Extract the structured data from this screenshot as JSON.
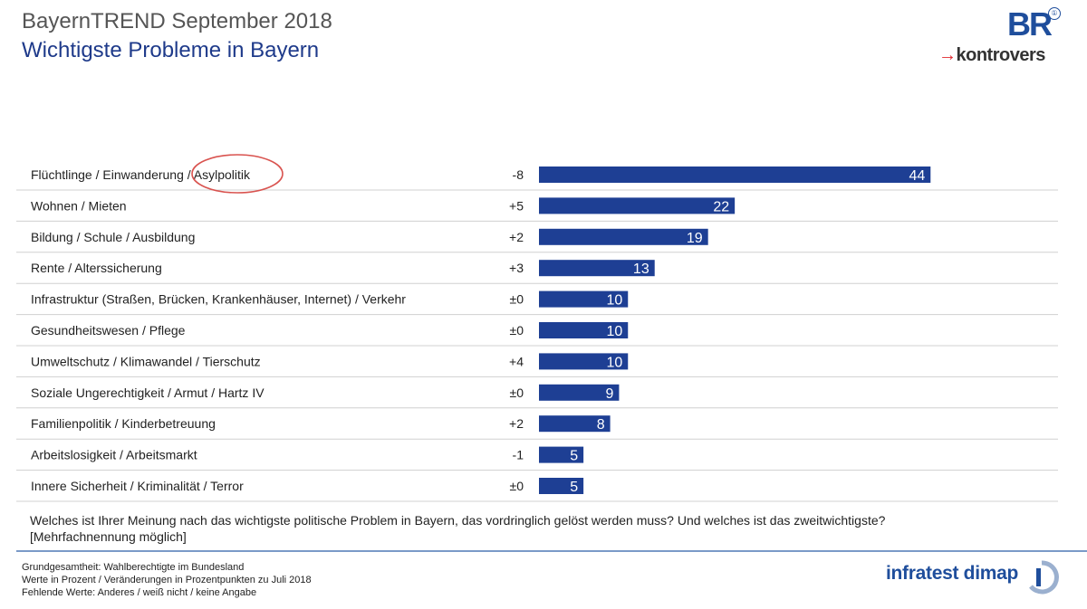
{
  "header": {
    "title": "BayernTREND September 2018",
    "subtitle": "Wichtigste Probleme in Bayern",
    "logo_br": "BR",
    "logo_br_mark": "①",
    "logo_kontrovers_arrow": "→",
    "logo_kontrovers": "kontrovers"
  },
  "chart_data": {
    "type": "bar",
    "orientation": "horizontal",
    "categories": [
      "Flüchtlinge / Einwanderung / Asylpolitik",
      "Wohnen / Mieten",
      "Bildung / Schule / Ausbildung",
      "Rente / Alterssicherung",
      "Infrastruktur (Straßen, Brücken, Krankenhäuser, Internet) / Verkehr",
      "Gesundheitswesen / Pflege",
      "Umweltschutz / Klimawandel / Tierschutz",
      "Soziale Ungerechtigkeit / Armut / Hartz IV",
      "Familienpolitik / Kinderbetreuung",
      "Arbeitslosigkeit / Arbeitsmarkt",
      "Innere Sicherheit / Kriminalität / Terror"
    ],
    "values": [
      44,
      22,
      19,
      13,
      10,
      10,
      10,
      9,
      8,
      5,
      5
    ],
    "changes": [
      "-8",
      "+5",
      "+2",
      "+3",
      "±0",
      "±0",
      "+4",
      "±0",
      "+2",
      "-1",
      "±0"
    ],
    "highlight": {
      "row": 0,
      "word": "Asylpolitik",
      "color": "#d9534f"
    },
    "bar_color": "#1e3f94",
    "xlim": [
      0,
      57
    ],
    "grid": false
  },
  "question": "Welches ist Ihrer Meinung nach das wichtigste politische Problem in Bayern, das vordringlich gelöst werden muss? Und welches ist das zweitwichtigste?",
  "question_note": "[Mehrfachnennung möglich]",
  "footer": {
    "line1": "Grundgesamtheit: Wahlberechtigte im Bundesland",
    "line2": "Werte in Prozent / Veränderungen in Prozentpunkten zu Juli 2018",
    "line3": "Fehlende Werte: Anderes / weiß nicht / keine Angabe",
    "brand": "infratest dimap"
  }
}
